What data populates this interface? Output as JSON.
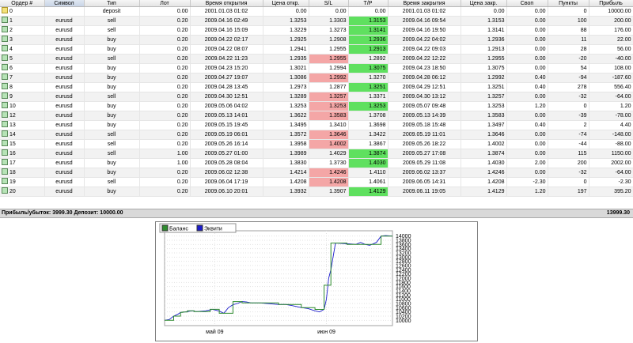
{
  "table": {
    "columns": [
      "Ордер #",
      "Символ",
      "Тип",
      "Лот",
      "Время открытия",
      "Цена откр.",
      "S/L",
      "T/P",
      "Время закрытия",
      "Цена закр.",
      "Своп",
      "Пункты",
      "Прибыль"
    ],
    "rows": [
      {
        "order": "0",
        "symbol": "",
        "type": "deposit",
        "lot": "0.00",
        "open_time": "2001.01.03 01:02",
        "open_price": "0.00",
        "sl": "0.00",
        "tp": "0.00",
        "close_time": "2001.01.03 01:02",
        "close_price": "0.00",
        "swap": "0.00",
        "points": "0",
        "profit": "10000.00",
        "sl_hit": false,
        "tp_hit": false
      },
      {
        "order": "1",
        "symbol": "eurusd",
        "type": "sell",
        "lot": "0.20",
        "open_time": "2009.04.16 02:49",
        "open_price": "1.3253",
        "sl": "1.3303",
        "tp": "1.3153",
        "close_time": "2009.04.16 09:54",
        "close_price": "1.3153",
        "swap": "0.00",
        "points": "100",
        "profit": "200.00",
        "sl_hit": false,
        "tp_hit": true
      },
      {
        "order": "2",
        "symbol": "eurusd",
        "type": "sell",
        "lot": "0.20",
        "open_time": "2009.04.16 15:09",
        "open_price": "1.3229",
        "sl": "1.3273",
        "tp": "1.3141",
        "close_time": "2009.04.16 19:50",
        "close_price": "1.3141",
        "swap": "0.00",
        "points": "88",
        "profit": "176.00",
        "sl_hit": false,
        "tp_hit": true
      },
      {
        "order": "3",
        "symbol": "eurusd",
        "type": "buy",
        "lot": "0.20",
        "open_time": "2009.04.22 02:17",
        "open_price": "1.2925",
        "sl": "1.2908",
        "tp": "1.2936",
        "close_time": "2009.04.22 04:02",
        "close_price": "1.2936",
        "swap": "0.00",
        "points": "11",
        "profit": "22.00",
        "sl_hit": false,
        "tp_hit": true
      },
      {
        "order": "4",
        "symbol": "eurusd",
        "type": "buy",
        "lot": "0.20",
        "open_time": "2009.04.22 08:07",
        "open_price": "1.2941",
        "sl": "1.2955",
        "tp": "1.2913",
        "close_time": "2009.04.22 09:03",
        "close_price": "1.2913",
        "swap": "0.00",
        "points": "28",
        "profit": "56.00",
        "sl_hit": false,
        "tp_hit": true
      },
      {
        "order": "5",
        "symbol": "eurusd",
        "type": "sell",
        "lot": "0.20",
        "open_time": "2009.04.22 11:23",
        "open_price": "1.2935",
        "sl": "1.2955",
        "tp": "1.2892",
        "close_time": "2009.04.22 12:22",
        "close_price": "1.2955",
        "swap": "0.00",
        "points": "-20",
        "profit": "-40.00",
        "sl_hit": true,
        "tp_hit": false
      },
      {
        "order": "6",
        "symbol": "eurusd",
        "type": "buy",
        "lot": "0.20",
        "open_time": "2009.04.23 15:20",
        "open_price": "1.3021",
        "sl": "1.2994",
        "tp": "1.3075",
        "close_time": "2009.04.23 18:50",
        "close_price": "1.3075",
        "swap": "0.00",
        "points": "54",
        "profit": "108.00",
        "sl_hit": false,
        "tp_hit": true
      },
      {
        "order": "7",
        "symbol": "eurusd",
        "type": "buy",
        "lot": "0.20",
        "open_time": "2009.04.27 19:07",
        "open_price": "1.3086",
        "sl": "1.2992",
        "tp": "1.3270",
        "close_time": "2009.04.28 06:12",
        "close_price": "1.2992",
        "swap": "0.40",
        "points": "-94",
        "profit": "-187.60",
        "sl_hit": true,
        "tp_hit": false
      },
      {
        "order": "8",
        "symbol": "eurusd",
        "type": "buy",
        "lot": "0.20",
        "open_time": "2009.04.28 13:45",
        "open_price": "1.2973",
        "sl": "1.2877",
        "tp": "1.3251",
        "close_time": "2009.04.29 12:51",
        "close_price": "1.3251",
        "swap": "0.40",
        "points": "278",
        "profit": "556.40",
        "sl_hit": false,
        "tp_hit": true
      },
      {
        "order": "9",
        "symbol": "eurusd",
        "type": "sell",
        "lot": "0.20",
        "open_time": "2009.04.30 12:51",
        "open_price": "1.3289",
        "sl": "1.3257",
        "tp": "1.3371",
        "close_time": "2009.04.30 13:12",
        "close_price": "1.3257",
        "swap": "0.00",
        "points": "-32",
        "profit": "-64.00",
        "sl_hit": true,
        "tp_hit": false
      },
      {
        "order": "10",
        "symbol": "eurusd",
        "type": "buy",
        "lot": "0.20",
        "open_time": "2009.05.06 04:02",
        "open_price": "1.3253",
        "sl": "1.3253",
        "tp": "1.3253",
        "close_time": "2009.05.07 09:48",
        "close_price": "1.3253",
        "swap": "1.20",
        "points": "0",
        "profit": "1.20",
        "sl_hit": true,
        "tp_hit": true
      },
      {
        "order": "12",
        "symbol": "eurusd",
        "type": "buy",
        "lot": "0.20",
        "open_time": "2009.05.13 14:01",
        "open_price": "1.3622",
        "sl": "1.3583",
        "tp": "1.3708",
        "close_time": "2009.05.13 14:39",
        "close_price": "1.3583",
        "swap": "0.00",
        "points": "-39",
        "profit": "-78.00",
        "sl_hit": true,
        "tp_hit": false
      },
      {
        "order": "13",
        "symbol": "eurusd",
        "type": "buy",
        "lot": "0.20",
        "open_time": "2009.05.15 19:45",
        "open_price": "1.3495",
        "sl": "1.3410",
        "tp": "1.3698",
        "close_time": "2009.05.18 15:48",
        "close_price": "1.3497",
        "swap": "0.40",
        "points": "2",
        "profit": "4.40",
        "sl_hit": false,
        "tp_hit": false
      },
      {
        "order": "14",
        "symbol": "eurusd",
        "type": "sell",
        "lot": "0.20",
        "open_time": "2009.05.19 06:01",
        "open_price": "1.3572",
        "sl": "1.3646",
        "tp": "1.3422",
        "close_time": "2009.05.19 11:01",
        "close_price": "1.3646",
        "swap": "0.00",
        "points": "-74",
        "profit": "-148.00",
        "sl_hit": true,
        "tp_hit": false
      },
      {
        "order": "15",
        "symbol": "eurusd",
        "type": "sell",
        "lot": "0.20",
        "open_time": "2009.05.26 16:14",
        "open_price": "1.3958",
        "sl": "1.4002",
        "tp": "1.3867",
        "close_time": "2009.05.26 18:22",
        "close_price": "1.4002",
        "swap": "0.00",
        "points": "-44",
        "profit": "-88.00",
        "sl_hit": true,
        "tp_hit": false
      },
      {
        "order": "16",
        "symbol": "eurusd",
        "type": "sell",
        "lot": "1.00",
        "open_time": "2009.05.27 01:00",
        "open_price": "1.3989",
        "sl": "1.4029",
        "tp": "1.3874",
        "close_time": "2009.05.27 17:08",
        "close_price": "1.3874",
        "swap": "0.00",
        "points": "115",
        "profit": "1150.00",
        "sl_hit": false,
        "tp_hit": true
      },
      {
        "order": "17",
        "symbol": "eurusd",
        "type": "buy",
        "lot": "1.00",
        "open_time": "2009.05.28 08:04",
        "open_price": "1.3830",
        "sl": "1.3730",
        "tp": "1.4030",
        "close_time": "2009.05.29 11:08",
        "close_price": "1.4030",
        "swap": "2.00",
        "points": "200",
        "profit": "2002.00",
        "sl_hit": false,
        "tp_hit": true
      },
      {
        "order": "18",
        "symbol": "eurusd",
        "type": "buy",
        "lot": "0.20",
        "open_time": "2009.06.02 12:38",
        "open_price": "1.4214",
        "sl": "1.4246",
        "tp": "1.4110",
        "close_time": "2009.06.02 13:37",
        "close_price": "1.4246",
        "swap": "0.00",
        "points": "-32",
        "profit": "-64.00",
        "sl_hit": true,
        "tp_hit": false
      },
      {
        "order": "19",
        "symbol": "eurusd",
        "type": "sell",
        "lot": "0.20",
        "open_time": "2009.06.04 17:19",
        "open_price": "1.4208",
        "sl": "1.4208",
        "tp": "1.4061",
        "close_time": "2009.06.05 14:31",
        "close_price": "1.4208",
        "swap": "-2.30",
        "points": "0",
        "profit": "-2.30",
        "sl_hit": true,
        "tp_hit": false
      },
      {
        "order": "20",
        "symbol": "eurusd",
        "type": "buy",
        "lot": "0.20",
        "open_time": "2009.06.10 20:01",
        "open_price": "1.3932",
        "sl": "1.3907",
        "tp": "1.4129",
        "close_time": "2009.06.11 19:05",
        "close_price": "1.4129",
        "swap": "1.20",
        "points": "197",
        "profit": "395.20",
        "sl_hit": false,
        "tp_hit": true
      }
    ]
  },
  "summary": {
    "text": "Прибыль/убыток: 3999.30  Депозит: 10000.00",
    "total": "13999.30"
  },
  "colors": {
    "sl_hit": "#f4a6a6",
    "tp_hit": "#5fe05f",
    "balance_line": "#2e8b2e",
    "equity_line": "#1c1ccc"
  },
  "chart_data": {
    "type": "line",
    "legend": {
      "placement": "top-left",
      "entries": [
        "Баланс",
        "Эквити"
      ]
    },
    "x_ticks": [
      {
        "label": "май 09",
        "x": 0.22
      },
      {
        "label": "июн 09",
        "x": 0.71
      }
    ],
    "y_ticks": [
      10000,
      10200,
      10400,
      10600,
      10800,
      11000,
      11200,
      11400,
      11600,
      11800,
      12000,
      12200,
      12400,
      12600,
      12800,
      13000,
      13200,
      13400,
      13600,
      13800,
      14000
    ],
    "ylim": [
      9900,
      14100
    ],
    "grid": true,
    "series": [
      {
        "name": "Баланс",
        "x": [
          0,
          0.04,
          0.04,
          0.07,
          0.07,
          0.08,
          0.08,
          0.1,
          0.1,
          0.13,
          0.13,
          0.2,
          0.2,
          0.24,
          0.24,
          0.3,
          0.3,
          0.34,
          0.34,
          0.39,
          0.39,
          0.5,
          0.5,
          0.55,
          0.55,
          0.6,
          0.6,
          0.66,
          0.66,
          0.7,
          0.7,
          0.73,
          0.73,
          0.8,
          0.8,
          0.86,
          0.86,
          0.95,
          0.95,
          1.0
        ],
        "y": [
          10000,
          10000,
          10200,
          10200,
          10376,
          10376,
          10398,
          10398,
          10454,
          10454,
          10414,
          10414,
          10522,
          10522,
          10334,
          10334,
          10891,
          10891,
          10827,
          10827,
          10828,
          10828,
          10750,
          10750,
          10754,
          10754,
          10606,
          10606,
          10518,
          10518,
          11668,
          11668,
          13670,
          13670,
          13606,
          13606,
          13604,
          13604,
          13999,
          13999
        ]
      },
      {
        "name": "Эквити",
        "x": [
          0,
          0.02,
          0.04,
          0.05,
          0.06,
          0.07,
          0.09,
          0.12,
          0.14,
          0.18,
          0.21,
          0.24,
          0.26,
          0.28,
          0.3,
          0.32,
          0.34,
          0.36,
          0.38,
          0.42,
          0.46,
          0.5,
          0.53,
          0.56,
          0.6,
          0.63,
          0.66,
          0.68,
          0.7,
          0.71,
          0.72,
          0.73,
          0.75,
          0.8,
          0.84,
          0.86,
          0.88,
          0.9,
          0.93,
          0.95,
          0.97,
          1.0
        ],
        "y": [
          10000,
          10040,
          10200,
          10250,
          10300,
          10376,
          10398,
          10450,
          10414,
          10450,
          10522,
          10440,
          10334,
          10600,
          10740,
          10800,
          10891,
          10870,
          10827,
          10828,
          10790,
          10750,
          10754,
          10700,
          10606,
          10560,
          10450,
          10400,
          10518,
          11000,
          12000,
          12400,
          13670,
          13640,
          13606,
          13700,
          13604,
          13560,
          13700,
          13999,
          14020,
          13999
        ]
      }
    ]
  }
}
